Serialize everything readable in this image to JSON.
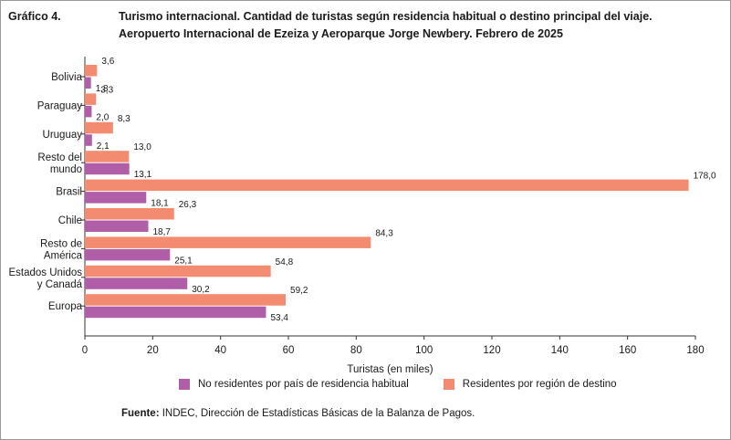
{
  "header": {
    "label": "Gráfico 4.",
    "title_line1": "Turismo internacional. Cantidad de turistas según residencia habitual o destino principal del viaje.",
    "title_line2": "Aeropuerto Internacional de Ezeiza y Aeroparque Jorge Newbery. Febrero de 2025"
  },
  "footer": {
    "source_label": "Fuente:",
    "source_text": " INDEC, Dirección de Estadísticas Básicas de la Balanza de Pagos."
  },
  "chart_data": {
    "type": "bar",
    "orientation": "horizontal",
    "categories": [
      [
        "Bolivia"
      ],
      [
        "Paraguay"
      ],
      [
        "Uruguay"
      ],
      [
        "Resto del",
        "mundo"
      ],
      [
        "Brasil"
      ],
      [
        "Chile"
      ],
      [
        "Resto de",
        "América"
      ],
      [
        "Estados Unidos",
        "y Canadá"
      ],
      [
        "Europa"
      ]
    ],
    "series": [
      {
        "name": "Residentes por región de destino",
        "color": "#f28b70",
        "values": [
          3.6,
          3.3,
          8.3,
          13.0,
          178.0,
          26.3,
          84.3,
          54.8,
          59.2
        ],
        "labels": [
          "3,6",
          "3,3",
          "8,3",
          "13,0",
          "178,0",
          "26,3",
          "84,3",
          "54,8",
          "59,2"
        ]
      },
      {
        "name": "No residentes por país de residencia habitual",
        "color": "#b05ea8",
        "values": [
          1.8,
          2.0,
          2.1,
          13.1,
          18.1,
          18.7,
          25.1,
          30.2,
          53.4
        ],
        "labels": [
          "1,8",
          "2,0",
          "2,1",
          "13,1",
          "18,1",
          "18,7",
          "25,1",
          "30,2",
          "53,4"
        ]
      }
    ],
    "xlabel": "Turistas (en miles)",
    "xlim": [
      0,
      180
    ],
    "xticks": [
      0,
      20,
      40,
      60,
      80,
      100,
      120,
      140,
      160,
      180
    ],
    "grid": false,
    "legend": [
      "No residentes por país de residencia habitual",
      "Residentes por región de destino"
    ],
    "legend_position": "bottom"
  }
}
